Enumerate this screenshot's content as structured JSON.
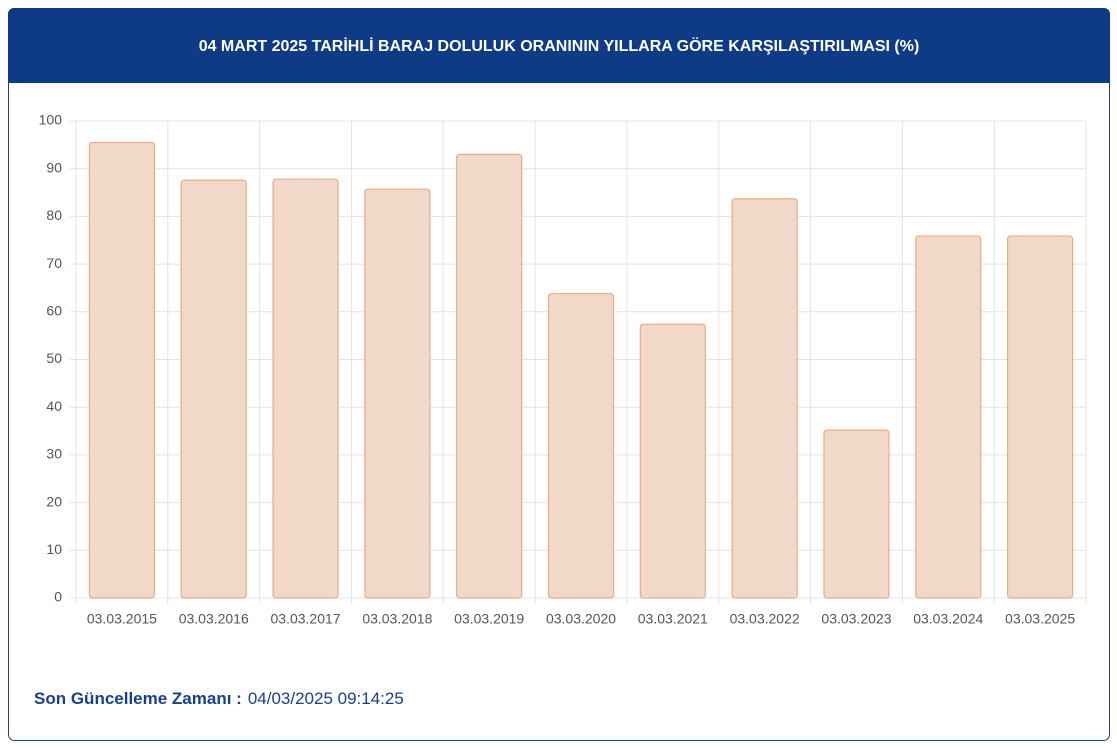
{
  "chart_data": {
    "type": "bar",
    "title": "04 MART 2025 TARİHLİ BARAJ DOLULUK ORANININ YILLARA GÖRE KARŞILAŞTIRILMASI (%)",
    "categories": [
      "03.03.2015",
      "03.03.2016",
      "03.03.2017",
      "03.03.2018",
      "03.03.2019",
      "03.03.2020",
      "03.03.2021",
      "03.03.2022",
      "03.03.2023",
      "03.03.2024",
      "03.03.2025"
    ],
    "values": [
      95.5,
      87.6,
      87.8,
      85.7,
      93.0,
      63.8,
      57.4,
      83.7,
      35.2,
      75.9,
      75.9
    ],
    "color": "#f2d8c8",
    "edge_color": "#e9ac86",
    "ylim": [
      0,
      100
    ],
    "yticks": [
      0,
      10,
      20,
      30,
      40,
      50,
      60,
      70,
      80,
      90,
      100
    ],
    "grid": true
  },
  "footer": {
    "label": "Son Güncelleme Zamanı :",
    "value": "04/03/2025 09:14:25"
  }
}
